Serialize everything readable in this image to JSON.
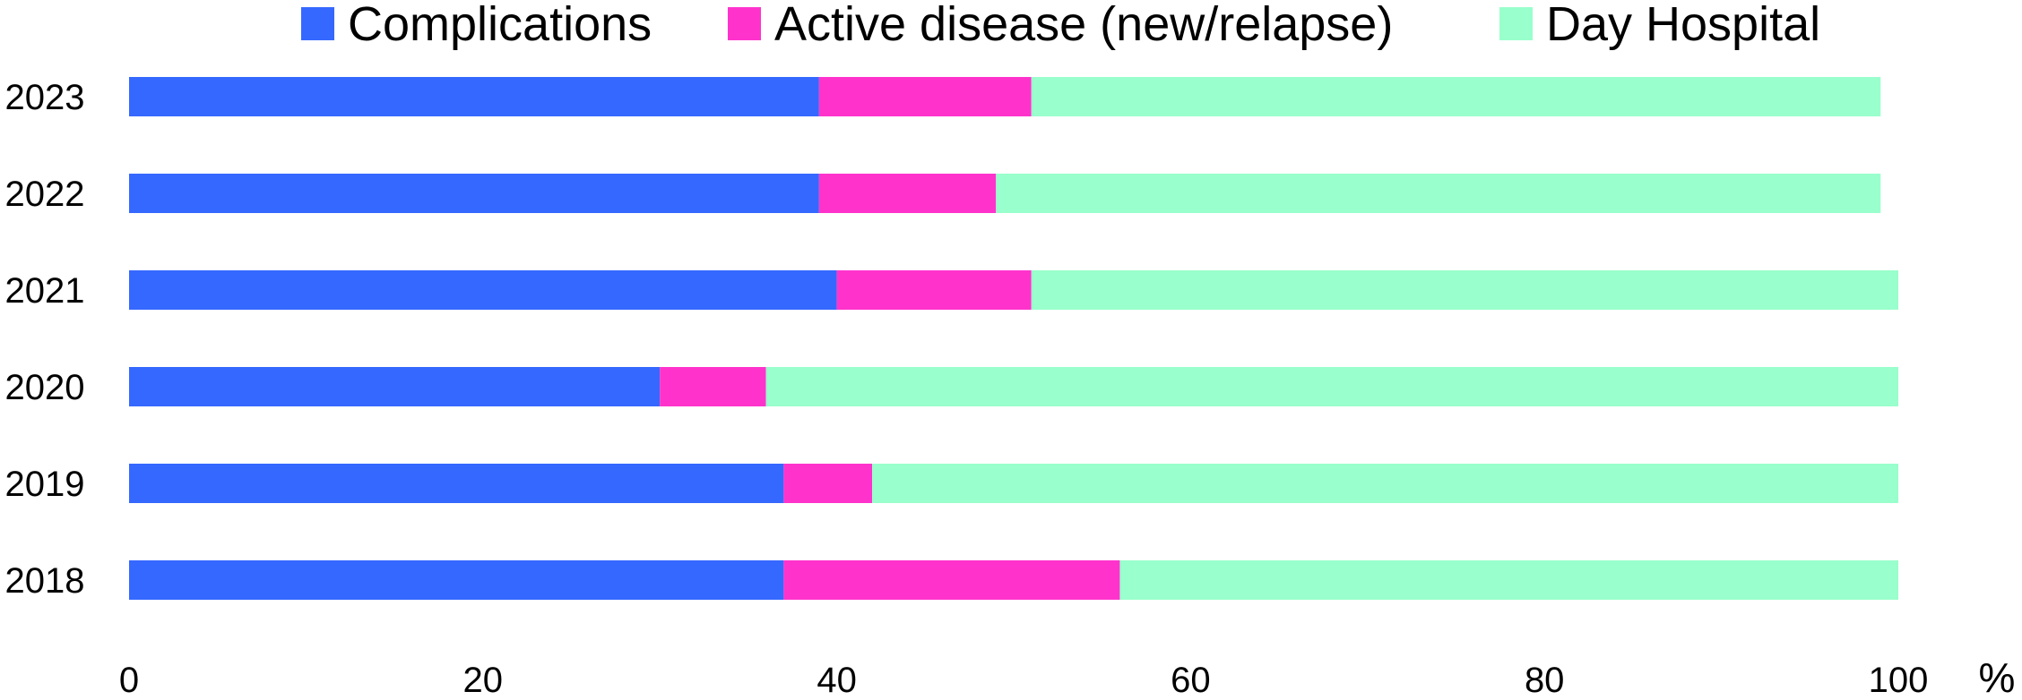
{
  "chart_data": {
    "type": "bar",
    "orientation": "horizontal",
    "stacked": true,
    "categories": [
      "2023",
      "2022",
      "2021",
      "2020",
      "2019",
      "2018"
    ],
    "series": [
      {
        "name": "Complications",
        "color": "#3568FF",
        "values": [
          39,
          39,
          40,
          30,
          37,
          37
        ]
      },
      {
        "name": "Active disease (new/relapse)",
        "color": "#FF33CC",
        "values": [
          12,
          10,
          11,
          6,
          5,
          19
        ]
      },
      {
        "name": "Day Hospital",
        "color": "#99FFCC",
        "values": [
          48,
          50,
          49,
          64,
          58,
          44
        ]
      }
    ],
    "x_ticks": [
      "0",
      "20",
      "40",
      "60",
      "80",
      "100"
    ],
    "xlim": [
      0,
      100
    ],
    "unit_label": "%",
    "legend_position": "top",
    "grid": false
  }
}
